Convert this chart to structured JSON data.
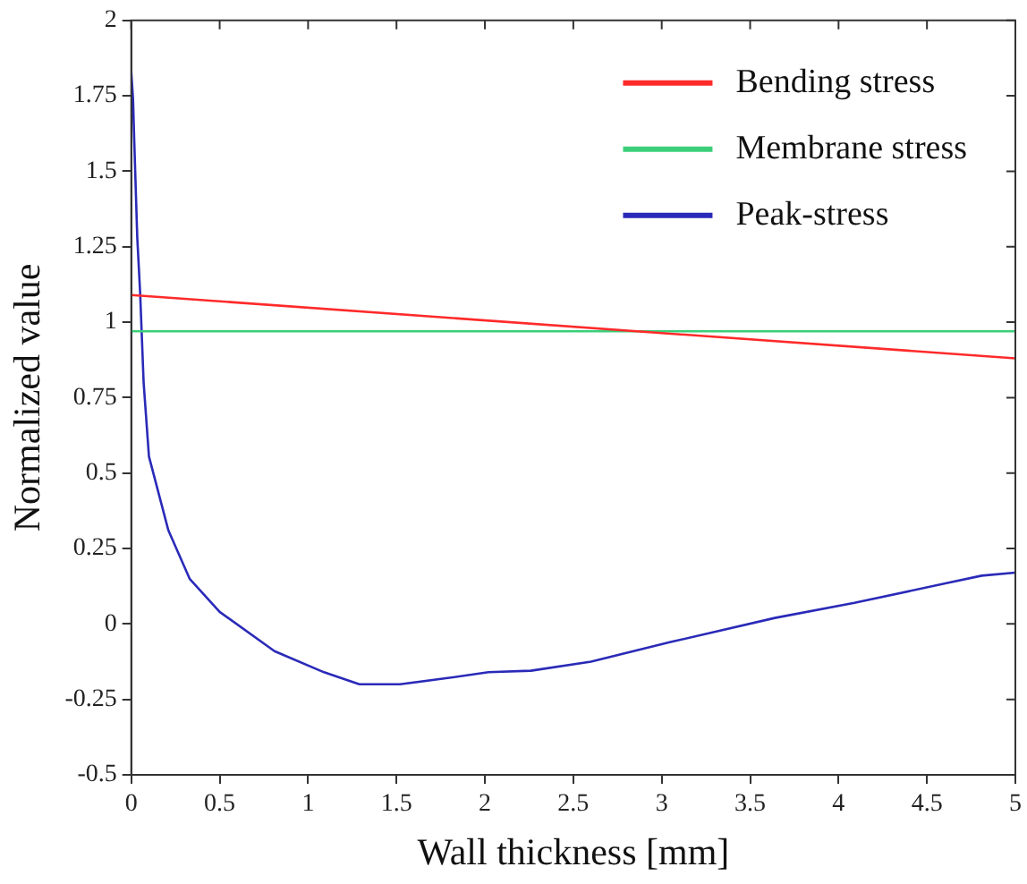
{
  "chart_data": {
    "type": "line",
    "xlabel": "Wall thickness [mm]",
    "ylabel": "Normalized value",
    "xlim": [
      0,
      5
    ],
    "xticks": [
      0,
      0.5,
      1,
      1.5,
      2,
      2.5,
      3,
      3.5,
      4,
      4.5,
      5
    ],
    "ylim": [
      -0.5,
      2
    ],
    "yticks": [
      -0.5,
      -0.25,
      0,
      0.25,
      0.5,
      0.75,
      1,
      1.25,
      1.5,
      1.75,
      2
    ],
    "grid": false,
    "legend": "top right",
    "marker": "none",
    "line_style": "solid",
    "series": [
      {
        "name": "Bending stress",
        "color": "#ff2a2a",
        "x": [
          0,
          5
        ],
        "values": [
          1.09,
          0.88
        ]
      },
      {
        "name": "Membrane stress",
        "color": "#3ccf7a",
        "x": [
          0,
          5
        ],
        "values": [
          0.97,
          0.97
        ]
      },
      {
        "name": "Peak-stress",
        "color": "#2a2ab8",
        "x": [
          0,
          0.01,
          0.017,
          0.034,
          0.05,
          0.07,
          0.1,
          0.21,
          0.33,
          0.5,
          0.81,
          1.09,
          1.29,
          1.52,
          1.78,
          2.02,
          2.26,
          2.6,
          3.05,
          3.64,
          4.09,
          4.61,
          4.81,
          5
        ],
        "values": [
          1.83,
          1.74,
          1.6,
          1.28,
          1.1,
          0.8,
          0.555,
          0.31,
          0.15,
          0.04,
          -0.09,
          -0.16,
          -0.2,
          -0.2,
          -0.18,
          -0.16,
          -0.155,
          -0.125,
          -0.06,
          0.02,
          0.07,
          0.135,
          0.16,
          0.17
        ]
      }
    ]
  }
}
